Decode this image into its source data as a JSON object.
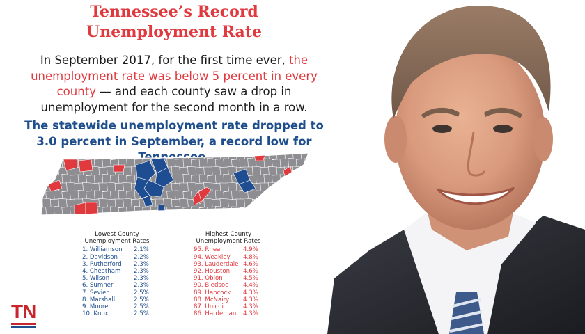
{
  "title": {
    "line1": "Tennessee’s Record",
    "line2": "Unemployment Rate"
  },
  "intro": [
    {
      "text": "In September 2017, for the first time ever, ",
      "highlight": false
    },
    {
      "text": "the unemployment rate was below 5 percent in every county",
      "highlight": true
    },
    {
      "text": " — and each county saw a drop in unemployment for the second month in a row.",
      "highlight": false
    }
  ],
  "statewide": "The statewide unemployment rate dropped to 3.0 percent in September, a record low for Tennessee.",
  "lowest": {
    "heading1": "Lowest County",
    "heading2": "Unemployment Rates",
    "rows": [
      {
        "name": "1. Williamson",
        "rate": "2.1%"
      },
      {
        "name": "2. Davidson",
        "rate": "2.2%"
      },
      {
        "name": "3. Rutherford",
        "rate": "2.3%"
      },
      {
        "name": "4. Cheatham",
        "rate": "2.3%"
      },
      {
        "name": "5. Wilson",
        "rate": "2.3%"
      },
      {
        "name": "6. Sumner",
        "rate": "2.3%"
      },
      {
        "name": "7. Sevier",
        "rate": "2.5%"
      },
      {
        "name": "8. Marshall",
        "rate": "2.5%"
      },
      {
        "name": "9. Moore",
        "rate": "2.5%"
      },
      {
        "name": "10. Knox",
        "rate": "2.5%"
      }
    ]
  },
  "highest": {
    "heading1": "Highest County",
    "heading2": "Unemployment Rates",
    "rows": [
      {
        "name": "95. Rhea",
        "rate": "4.9%"
      },
      {
        "name": "94. Weakley",
        "rate": "4.8%"
      },
      {
        "name": "93. Lauderdale",
        "rate": "4.6%"
      },
      {
        "name": "92. Houston",
        "rate": "4.6%"
      },
      {
        "name": "91. Obion",
        "rate": "4.5%"
      },
      {
        "name": "90. Bledsoe",
        "rate": "4.4%"
      },
      {
        "name": "89. Hancock",
        "rate": "4.3%"
      },
      {
        "name": "88. McNairy",
        "rate": "4.3%"
      },
      {
        "name": "87. Unicoi",
        "rate": "4.3%"
      },
      {
        "name": "86. Hardeman",
        "rate": "4.3%"
      }
    ]
  },
  "logo": {
    "text": "TN"
  },
  "colors": {
    "red": "#e0393e",
    "blue": "#1f4e8c",
    "text": "#1a1a1a",
    "map_gray": "#8e8e92",
    "map_blue": "#1e4d91",
    "map_red": "#e03a3e"
  }
}
